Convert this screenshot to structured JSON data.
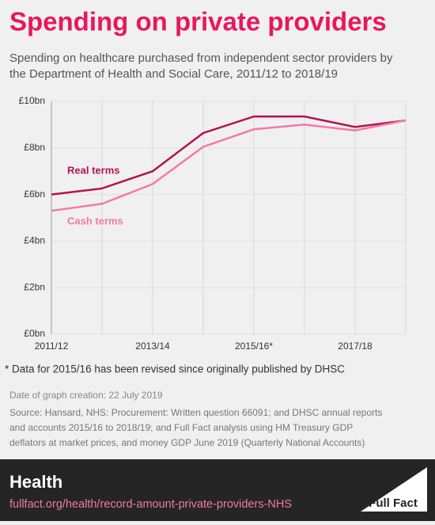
{
  "chart_data": {
    "type": "line",
    "title": "Spending on private providers",
    "subtitle": [
      "Spending on healthcare purchased from independent sector providers by",
      "the Department of Health and Social Care, 2011/12 to 2018/19"
    ],
    "categories": [
      "2011/12",
      null,
      "2013/14",
      null,
      "2015/16*",
      null,
      "2017/18",
      null
    ],
    "series": [
      {
        "name": "Real terms",
        "color": "#b5124f",
        "values": [
          6.0,
          6.26,
          7.0,
          8.64,
          9.35,
          9.35,
          8.9,
          9.18
        ]
      },
      {
        "name": "Cash terms",
        "color": "#f27aa5",
        "values": [
          5.3,
          5.6,
          6.45,
          8.05,
          8.8,
          9.0,
          8.75,
          9.18
        ]
      }
    ],
    "ylim": [
      0,
      10
    ],
    "yticks": [
      {
        "value": 0,
        "label": "£0bn"
      },
      {
        "value": 2,
        "label": "£2bn"
      },
      {
        "value": 4,
        "label": "£4bn"
      },
      {
        "value": 6,
        "label": "£6bn"
      },
      {
        "value": 8,
        "label": "£8bn"
      },
      {
        "value": 10,
        "label": "£10bn"
      }
    ],
    "grid": true
  },
  "notes": {
    "footnote": "* Data for 2015/16 has been revised since originally published by DHSC",
    "date": "Date of graph creation: 22 July 2019",
    "source": [
      "Source: Hansard, NHS: Procurement: Written question 66091; and DHSC annual reports",
      "and accounts 2015/16 to 2018/19; and Full Fact analysis using HM Treasury GDP",
      "deflators at market prices, and money GDP June 2019 (Quarterly National Accounts)"
    ]
  },
  "footer": {
    "section": "Health",
    "url": "fullfact.org/health/record-amount-private-providers-NHS",
    "logo": "Full Fact"
  }
}
